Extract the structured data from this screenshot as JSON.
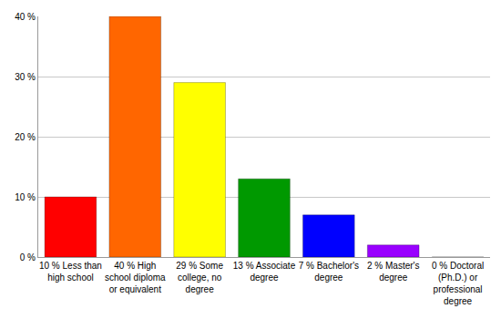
{
  "chart_data": {
    "type": "bar",
    "categories": [
      "10 % Less than high school",
      "40 % High school diploma or equivalent",
      "29 % Some college, no degree",
      "13 % Associate degree",
      "7 % Bachelor's degree",
      "2 % Master's degree",
      "0 % Doctoral (Ph.D.) or professional degree"
    ],
    "values": [
      10,
      40,
      29,
      13,
      7,
      2,
      0
    ],
    "colors": [
      "#ff0000",
      "#ff6600",
      "#ffff00",
      "#009900",
      "#0000ff",
      "#9900ff",
      "#ff00ff"
    ],
    "ylim": [
      0,
      40
    ],
    "yticks": [
      {
        "value": 0,
        "label": "0 %"
      },
      {
        "value": 10,
        "label": "10 %"
      },
      {
        "value": 20,
        "label": "20 %"
      },
      {
        "value": 30,
        "label": "30 %"
      },
      {
        "value": 40,
        "label": "40 %"
      }
    ],
    "grid": true
  }
}
